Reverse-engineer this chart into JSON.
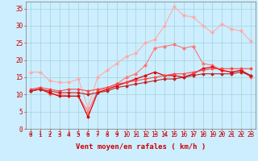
{
  "x": [
    0,
    1,
    2,
    3,
    4,
    5,
    6,
    7,
    8,
    9,
    10,
    11,
    12,
    13,
    14,
    15,
    16,
    17,
    18,
    19,
    20,
    21,
    22,
    23
  ],
  "lines": [
    {
      "color": "#ffaaaa",
      "linewidth": 0.8,
      "marker": "D",
      "markersize": 2.0,
      "values": [
        16.5,
        16.5,
        14.0,
        13.5,
        13.5,
        14.5,
        6.0,
        15.0,
        17.0,
        19.0,
        21.0,
        22.0,
        25.0,
        26.0,
        30.0,
        35.5,
        33.0,
        32.5,
        30.0,
        28.0,
        30.5,
        29.0,
        28.5,
        25.5
      ]
    },
    {
      "color": "#ff7777",
      "linewidth": 0.8,
      "marker": "D",
      "markersize": 2.0,
      "values": [
        11.0,
        12.0,
        10.0,
        10.0,
        9.5,
        9.5,
        5.0,
        11.0,
        12.0,
        13.0,
        15.0,
        16.0,
        18.5,
        23.5,
        24.0,
        24.5,
        23.5,
        24.0,
        19.0,
        18.5,
        17.0,
        16.5,
        17.0,
        15.0
      ]
    },
    {
      "color": "#dd0000",
      "linewidth": 0.9,
      "marker": "D",
      "markersize": 1.8,
      "values": [
        11.0,
        11.5,
        10.5,
        9.5,
        9.5,
        9.5,
        3.5,
        10.5,
        11.5,
        12.5,
        13.5,
        14.5,
        15.5,
        16.5,
        15.5,
        15.5,
        15.0,
        16.0,
        17.5,
        18.0,
        17.0,
        16.5,
        17.0,
        15.5
      ]
    },
    {
      "color": "#ff4444",
      "linewidth": 0.8,
      "marker": "D",
      "markersize": 1.8,
      "values": [
        11.5,
        12.0,
        11.5,
        11.0,
        11.5,
        11.5,
        11.0,
        11.5,
        12.0,
        13.0,
        13.5,
        14.0,
        14.5,
        15.0,
        15.5,
        16.0,
        16.0,
        16.5,
        17.0,
        17.5,
        17.5,
        17.5,
        17.5,
        17.5
      ]
    },
    {
      "color": "#bb2222",
      "linewidth": 0.8,
      "marker": "D",
      "markersize": 1.8,
      "values": [
        11.0,
        11.5,
        11.0,
        10.5,
        10.5,
        10.5,
        10.0,
        10.5,
        11.0,
        12.0,
        12.5,
        13.0,
        13.5,
        14.0,
        14.5,
        14.5,
        15.0,
        15.5,
        16.0,
        16.0,
        16.0,
        16.0,
        16.5,
        15.5
      ]
    }
  ],
  "arrow_color": "#cc0000",
  "background_color": "#cceeff",
  "grid_color": "#99cccc",
  "xlabel": "Vent moyen/en rafales ( km/h )",
  "xlabel_color": "#cc0000",
  "xlabel_fontsize": 6.5,
  "tick_color": "#cc0000",
  "tick_fontsize": 5.5,
  "xlim": [
    -0.5,
    23.5
  ],
  "ylim": [
    0,
    37
  ],
  "yticks": [
    0,
    5,
    10,
    15,
    20,
    25,
    30,
    35
  ]
}
